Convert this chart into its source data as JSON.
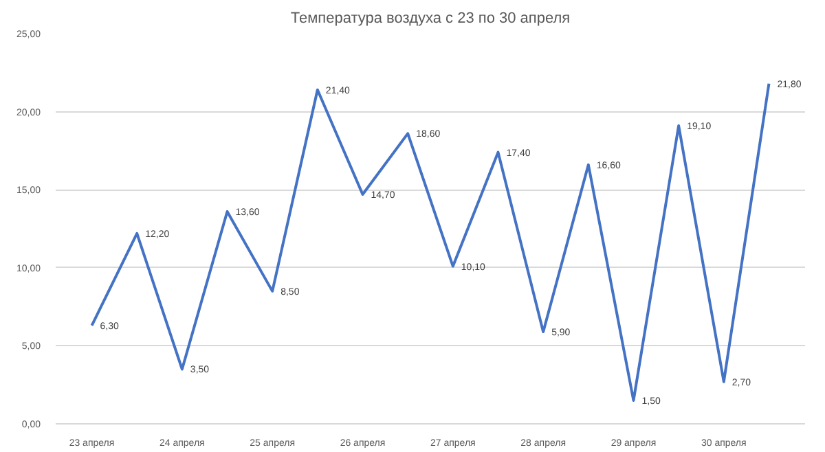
{
  "chart_data": {
    "type": "line",
    "title": "Температура воздуха с 23 по 30 апреля",
    "categories": [
      "23 апреля",
      null,
      "24 апреля",
      null,
      "25 апреля",
      null,
      "26 апреля",
      null,
      "27 апреля",
      null,
      "28 апреля",
      null,
      "29 апреля",
      null,
      "30 апреля",
      null
    ],
    "series": [
      {
        "color": "#4472c4",
        "values": [
          6.3,
          12.2,
          3.5,
          13.6,
          8.5,
          21.4,
          14.7,
          18.6,
          10.1,
          17.4,
          5.9,
          16.6,
          1.5,
          19.1,
          2.7,
          21.8
        ],
        "value_labels": [
          "6,30",
          "12,20",
          "3,50",
          "13,60",
          "8,50",
          "21,40",
          "14,70",
          "18,60",
          "10,10",
          "17,40",
          "5,90",
          "16,60",
          "1,50",
          "19,10",
          "2,70",
          "21,80"
        ]
      }
    ],
    "ylim": [
      0,
      25
    ],
    "yticks": [
      {
        "value": 0,
        "label": "0,00"
      },
      {
        "value": 5,
        "label": "5,00"
      },
      {
        "value": 10,
        "label": "10,00"
      },
      {
        "value": 15,
        "label": "15,00"
      },
      {
        "value": 20,
        "label": "20,00"
      },
      {
        "value": 25,
        "label": "25,00"
      }
    ],
    "grid": "y",
    "marker": "none",
    "line_style": "solid"
  }
}
